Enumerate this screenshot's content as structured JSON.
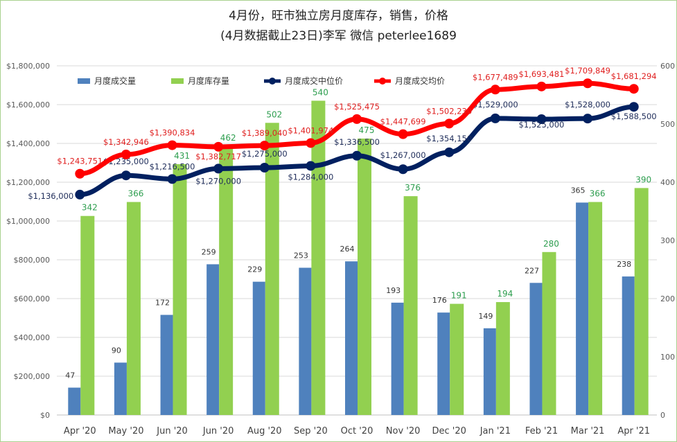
{
  "chart_data": {
    "type": "bar+line",
    "title": "4月份，旺市独立房月度库存，销售，价格",
    "subtitle": "(4月数据截止23日)李军  微信 peterlee1689",
    "categories": [
      "Apr '20",
      "May '20",
      "Jun '20",
      "Jun '20",
      "Aug '20",
      "Sep '20",
      "Oct '20",
      "Nov '20",
      "Dec '20",
      "Jan '21",
      "Feb '21",
      "Mar '21",
      "Apr '21"
    ],
    "left_axis": {
      "min": 0,
      "max": 1800000,
      "step": 200000,
      "ticks": [
        "$0",
        "$200,000",
        "$400,000",
        "$600,000",
        "$800,000",
        "$1,000,000",
        "$1,200,000",
        "$1,400,000",
        "$1,600,000",
        "$1,800,000"
      ]
    },
    "right_axis": {
      "min": 0,
      "max": 600,
      "step": 100,
      "ticks": [
        "0",
        "100",
        "200",
        "300",
        "400",
        "500",
        "600"
      ]
    },
    "grid": true,
    "legend_position": "top",
    "series": [
      {
        "name": "月度成交量",
        "type": "bar",
        "axis": "right",
        "color": "#4f81bd",
        "label_color": "#333333",
        "values": [
          47,
          90,
          172,
          259,
          229,
          253,
          264,
          193,
          176,
          149,
          227,
          365,
          238
        ]
      },
      {
        "name": "月度库存量",
        "type": "bar",
        "axis": "right",
        "color": "#92d050",
        "label_color": "#2e9e4f",
        "values": [
          342,
          366,
          431,
          462,
          502,
          540,
          475,
          376,
          191,
          194,
          280,
          366,
          390
        ]
      },
      {
        "name": "月度成交中位价",
        "type": "line",
        "axis": "left",
        "color": "#002060",
        "label_color": "#1f2d5a",
        "values": [
          1136000,
          1235000,
          1216500,
          1270000,
          1275000,
          1284000,
          1336500,
          1267000,
          1354150,
          1529000,
          1525000,
          1528000,
          1588500
        ]
      },
      {
        "name": "月度成交均价",
        "type": "line",
        "axis": "left",
        "color": "#ff0000",
        "label_color": "#e02020",
        "values": [
          1243751,
          1342946,
          1390834,
          1382717,
          1389040,
          1401974,
          1525475,
          1447699,
          1502230,
          1677489,
          1693481,
          1709849,
          1681294
        ]
      }
    ]
  }
}
